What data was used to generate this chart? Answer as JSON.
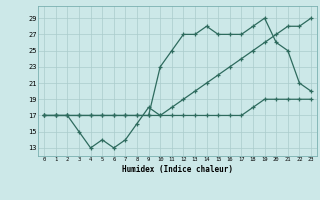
{
  "xlabel": "Humidex (Indice chaleur)",
  "background_color": "#cce8e8",
  "grid_color": "#aacccc",
  "line_color": "#2e6b5e",
  "x_ticks": [
    0,
    1,
    2,
    3,
    4,
    5,
    6,
    7,
    8,
    9,
    10,
    11,
    12,
    13,
    14,
    15,
    16,
    17,
    18,
    19,
    20,
    21,
    22,
    23
  ],
  "y_ticks": [
    13,
    15,
    17,
    19,
    21,
    23,
    25,
    27,
    29
  ],
  "xlim": [
    -0.5,
    23.5
  ],
  "ylim": [
    12.0,
    30.5
  ],
  "line1_x": [
    0,
    1,
    2,
    3,
    4,
    5,
    6,
    7,
    8,
    9,
    10,
    11,
    12,
    13,
    14,
    15,
    16,
    17,
    18,
    19,
    20,
    21,
    22,
    23
  ],
  "line1_y": [
    17,
    17,
    17,
    15,
    13,
    14,
    13,
    14,
    16,
    18,
    17,
    17,
    17,
    17,
    17,
    17,
    17,
    17,
    18,
    19,
    19,
    19,
    19,
    19
  ],
  "line2_x": [
    0,
    1,
    2,
    3,
    4,
    5,
    6,
    7,
    8,
    9,
    10,
    11,
    12,
    13,
    14,
    15,
    16,
    17,
    18,
    19,
    20,
    21,
    22,
    23
  ],
  "line2_y": [
    17,
    17,
    17,
    17,
    17,
    17,
    17,
    17,
    17,
    17,
    17,
    18,
    19,
    20,
    21,
    22,
    23,
    24,
    25,
    26,
    27,
    28,
    28,
    29
  ],
  "line3_x": [
    0,
    1,
    2,
    3,
    4,
    5,
    6,
    7,
    8,
    9,
    10,
    11,
    12,
    13,
    14,
    15,
    16,
    17,
    18,
    19,
    20,
    21,
    22,
    23
  ],
  "line3_y": [
    17,
    17,
    17,
    17,
    17,
    17,
    17,
    17,
    17,
    17,
    23,
    25,
    27,
    27,
    28,
    27,
    27,
    27,
    28,
    29,
    26,
    25,
    21,
    20
  ]
}
